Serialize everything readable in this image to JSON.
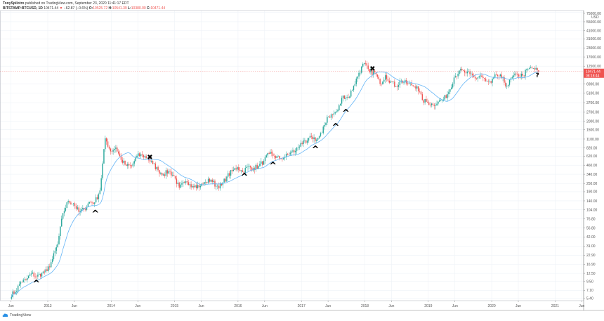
{
  "header": {
    "author": "TonySpilotro",
    "published": "published on TradingView.com, September 23, 2020 11:41:17 EDT",
    "symbol": "BITSTAMP:BTCUSD, 1D",
    "last": "10471.44",
    "change": "−62.87 (−0.6%)",
    "open_label": "O:",
    "open": "10525.72",
    "high_label": "H:",
    "high": "10541.39",
    "low_label": "L:",
    "low": "10380.00",
    "close_label": "C:",
    "close": "10471.44"
  },
  "footer": {
    "logo_text": "TradingView"
  },
  "colors": {
    "up": "#26a69a",
    "down": "#ef5350",
    "ma": "#64b5f6",
    "price_line": "#ef5350",
    "grid": "#eef2f7"
  },
  "chart_data": {
    "type": "candlestick",
    "y_scale": "log",
    "y_unit": "USD",
    "ylim": [
      4.5,
      75000
    ],
    "y_ticks": [
      "75000.00",
      "55000.00",
      "41000.00",
      "31000.00",
      "23000.00",
      "17000.00",
      "12500.00",
      "6900.00",
      "5100.00",
      "3700.00",
      "2700.00",
      "2000.00",
      "1500.00",
      "1100.00",
      "820.00",
      "620.00",
      "460.00",
      "340.00",
      "250.00",
      "190.00",
      "140.00",
      "104.00",
      "76.80",
      "56.80",
      "42.00",
      "31.00",
      "22.90",
      "16.90",
      "12.50",
      "9.50",
      "7.10",
      "5.40"
    ],
    "x_ticks": [
      {
        "label": "Jun",
        "t": 2012.42
      },
      {
        "label": "2013",
        "t": 2013.0
      },
      {
        "label": "Jun",
        "t": 2013.42
      },
      {
        "label": "2014",
        "t": 2014.0
      },
      {
        "label": "Jun",
        "t": 2014.42
      },
      {
        "label": "2015",
        "t": 2015.0
      },
      {
        "label": "Jun",
        "t": 2015.42
      },
      {
        "label": "2016",
        "t": 2016.0
      },
      {
        "label": "Jun",
        "t": 2016.42
      },
      {
        "label": "2017",
        "t": 2017.0
      },
      {
        "label": "Jun",
        "t": 2017.42
      },
      {
        "label": "2018",
        "t": 2018.0
      },
      {
        "label": "Jun",
        "t": 2018.42
      },
      {
        "label": "2019",
        "t": 2019.0
      },
      {
        "label": "Jun",
        "t": 2019.42
      },
      {
        "label": "2020",
        "t": 2020.0
      },
      {
        "label": "Jun",
        "t": 2020.42
      },
      {
        "label": "2021",
        "t": 2021.0
      },
      {
        "label": "Jun",
        "t": 2021.42
      }
    ],
    "start": "2012-06",
    "monthly_close": [
      6.7,
      9.4,
      10,
      12.4,
      11.2,
      12.6,
      13.5,
      20,
      33,
      93,
      139,
      129,
      97,
      106,
      135,
      133,
      198,
      1130,
      730,
      830,
      550,
      450,
      445,
      630,
      640,
      585,
      480,
      390,
      338,
      378,
      320,
      217,
      254,
      244,
      236,
      230,
      263,
      284,
      230,
      236,
      314,
      377,
      430,
      368,
      437,
      416,
      448,
      531,
      673,
      624,
      575,
      608,
      700,
      742,
      963,
      970,
      1190,
      1080,
      1350,
      2300,
      2480,
      2870,
      4700,
      4340,
      6470,
      10000,
      13800,
      10200,
      10300,
      6900,
      9240,
      7500,
      6400,
      7730,
      7030,
      6630,
      6370,
      4020,
      3740,
      3460,
      3830,
      4100,
      5320,
      8570,
      10800,
      10100,
      9600,
      8300,
      9150,
      7570,
      7200,
      9350,
      8540,
      6420,
      8630,
      9450,
      9140,
      11350,
      11650,
      10471
    ],
    "current_price": {
      "value": "10471.44",
      "countdown": "08:18:44"
    },
    "markers": [
      {
        "type": "buy",
        "symbol": "^",
        "t": 2012.82,
        "price": 9.7
      },
      {
        "type": "buy",
        "symbol": "^",
        "t": 2013.75,
        "price": 100
      },
      {
        "type": "sell",
        "symbol": "x",
        "t": 2014.61,
        "price": 598
      },
      {
        "type": "buy",
        "symbol": "^",
        "t": 2016.1,
        "price": 340
      },
      {
        "type": "buy",
        "symbol": "^",
        "t": 2016.55,
        "price": 495
      },
      {
        "type": "buy",
        "symbol": "^",
        "t": 2017.22,
        "price": 850
      },
      {
        "type": "buy",
        "symbol": "^",
        "t": 2017.54,
        "price": 1800
      },
      {
        "type": "buy",
        "symbol": "^",
        "t": 2017.7,
        "price": 2870
      },
      {
        "type": "sell",
        "symbol": "x",
        "t": 2018.12,
        "price": 11430
      },
      {
        "type": "question",
        "symbol": "?",
        "t": 2020.72,
        "price": 9270
      }
    ]
  }
}
